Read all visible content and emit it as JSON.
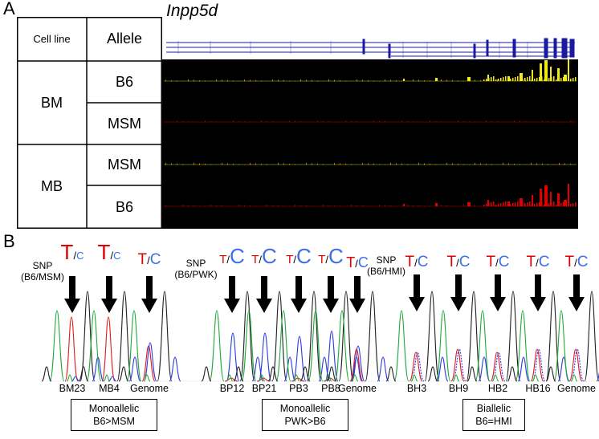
{
  "panel_a": {
    "letter": "A",
    "gene": "Inpp5d",
    "header": {
      "col1": "Cell line",
      "col2": "Allele"
    },
    "groups": [
      {
        "name": "BM",
        "alleles": [
          "B6",
          "MSM"
        ]
      },
      {
        "name": "MB",
        "alleles": [
          "MSM",
          "B6"
        ]
      }
    ],
    "track_colors": {
      "gene_model": "#1a1aa0",
      "mb_allele": "#f2ea14",
      "red_allele": "#e00000",
      "background": "#000000"
    }
  },
  "panel_b": {
    "letter": "B",
    "groups": [
      {
        "snp_label_line1": "SNP",
        "snp_label_line2": "(B6/MSM)",
        "header": {
          "t": "T",
          "slash": "/",
          "c": "C"
        },
        "samples": [
          {
            "name": "BM23",
            "t": "T",
            "slash": "/",
            "c": "C"
          },
          {
            "name": "MB4",
            "t": "T",
            "slash": "/",
            "c": "C"
          },
          {
            "name": "Genome",
            "t": "T",
            "slash": "/",
            "c": "C"
          }
        ],
        "result_line1": "Monoallelic",
        "result_line2": "B6>MSM"
      },
      {
        "snp_label_line1": "SNP",
        "snp_label_line2": "(B6/PWK)",
        "samples": [
          {
            "name": "BP12",
            "t": "T",
            "slash": "/",
            "c": "C"
          },
          {
            "name": "BP21",
            "t": "T",
            "slash": "/",
            "c": "C"
          },
          {
            "name": "PB3",
            "t": "T",
            "slash": "/",
            "c": "C"
          },
          {
            "name": "PB8",
            "t": "T",
            "slash": "/",
            "c": "C"
          },
          {
            "name": "Genome",
            "t": "T",
            "slash": "/",
            "c": "C"
          }
        ],
        "result_line1": "Monoallelic",
        "result_line2": "PWK>B6"
      },
      {
        "snp_label_line1": "SNP",
        "snp_label_line2": "(B6/HMI)",
        "samples": [
          {
            "name": "BH3",
            "t": "T",
            "slash": "/",
            "c": "C"
          },
          {
            "name": "BH9",
            "t": "T",
            "slash": "/",
            "c": "C"
          },
          {
            "name": "HB2",
            "t": "T",
            "slash": "/",
            "c": "C"
          },
          {
            "name": "HB16",
            "t": "T",
            "slash": "/",
            "c": "C"
          },
          {
            "name": "Genome",
            "t": "T",
            "slash": "/",
            "c": "C"
          }
        ],
        "result_line1": "Biallelic",
        "result_line2": "B6=HMI"
      }
    ],
    "trace_colors": {
      "A": "#1faa3a",
      "T": "#e01a1a",
      "C": "#2a3be0",
      "G": "#222222"
    }
  }
}
